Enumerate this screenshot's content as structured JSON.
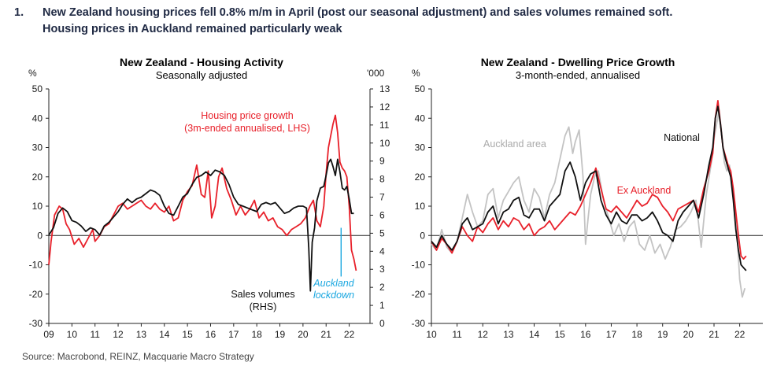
{
  "header": {
    "number": "1.",
    "line1": "New Zealand housing prices fell 0.8% m/m in April (post our seasonal adjustment) and sales volumes remained soft.",
    "line2": "Housing prices in Auckland remained particularly weak"
  },
  "source": "Source: Macrobond, REINZ, Macquarie Macro Strategy",
  "colors": {
    "red": "#e8202a",
    "black": "#111111",
    "grey": "#c3c3c3",
    "blue": "#1aa7e0"
  },
  "chart_data": [
    {
      "type": "line",
      "title": "New Zealand - Housing Activity",
      "subtitle": "Seasonally adjusted",
      "left_unit": "%",
      "right_unit": "'000",
      "ylim_left": [
        -30,
        50
      ],
      "ylim_right": [
        0,
        13
      ],
      "yticks_left": [
        "50",
        "40",
        "30",
        "20",
        "10",
        "0",
        "-10",
        "-20",
        "-30"
      ],
      "yticks_right": [
        "13",
        "12",
        "11",
        "10",
        "9",
        "8",
        "7",
        "6",
        "5",
        "4",
        "3",
        "2",
        "1",
        "0"
      ],
      "xlim": [
        2009,
        2022.9
      ],
      "xticks": [
        "09",
        "10",
        "11",
        "12",
        "13",
        "14",
        "15",
        "16",
        "17",
        "18",
        "19",
        "20",
        "21",
        "22"
      ],
      "annotations": {
        "price_label_1": "Housing price growth",
        "price_label_2": "(3m-ended annualised, LHS)",
        "sales_label_1": "Sales volumes",
        "sales_label_2": "(RHS)",
        "lockdown_1": "Auckland",
        "lockdown_2": "lockdown"
      },
      "series": [
        {
          "axis": "left",
          "color": "red",
          "x": [
            2009.0,
            2009.1,
            2009.25,
            2009.45,
            2009.6,
            2009.75,
            2009.9,
            2010.1,
            2010.3,
            2010.5,
            2010.7,
            2010.9,
            2011.0,
            2011.2,
            2011.4,
            2011.6,
            2011.8,
            2012.0,
            2012.2,
            2012.4,
            2012.6,
            2012.8,
            2013.0,
            2013.2,
            2013.4,
            2013.6,
            2013.8,
            2014.0,
            2014.2,
            2014.4,
            2014.6,
            2014.8,
            2015.0,
            2015.2,
            2015.4,
            2015.6,
            2015.75,
            2015.9,
            2016.05,
            2016.2,
            2016.35,
            2016.5,
            2016.7,
            2016.9,
            2017.1,
            2017.3,
            2017.5,
            2017.7,
            2017.9,
            2018.1,
            2018.3,
            2018.5,
            2018.7,
            2018.9,
            2019.1,
            2019.3,
            2019.5,
            2019.7,
            2019.9,
            2020.1,
            2020.3,
            2020.45,
            2020.6,
            2020.75,
            2020.9,
            2021.0,
            2021.1,
            2021.2,
            2021.3,
            2021.4,
            2021.5,
            2021.6,
            2021.7,
            2021.8,
            2021.9,
            2022.0,
            2022.1,
            2022.2,
            2022.3
          ],
          "y": [
            -10,
            -2,
            7,
            10,
            9,
            4,
            2,
            -3,
            -1,
            -4,
            -1,
            2,
            -2,
            0,
            3,
            4,
            7,
            10,
            11,
            9,
            10,
            11,
            12,
            10,
            9,
            11,
            9,
            8,
            10,
            5,
            6,
            12,
            15,
            17,
            24,
            14,
            13,
            22,
            6,
            10,
            20,
            23,
            16,
            12,
            7,
            10,
            7,
            9,
            12,
            6,
            8,
            5,
            6,
            3,
            2,
            0,
            2,
            3,
            4,
            6,
            10,
            12,
            5,
            3,
            10,
            21,
            30,
            34,
            38,
            41,
            35,
            25,
            23,
            22,
            20,
            10,
            -5,
            -8,
            -12
          ]
        },
        {
          "axis": "right",
          "color": "black",
          "x": [
            2009.0,
            2009.2,
            2009.4,
            2009.6,
            2009.8,
            2010.0,
            2010.2,
            2010.4,
            2010.6,
            2010.8,
            2011.0,
            2011.2,
            2011.4,
            2011.6,
            2011.8,
            2012.0,
            2012.2,
            2012.4,
            2012.6,
            2012.8,
            2013.0,
            2013.2,
            2013.4,
            2013.6,
            2013.8,
            2014.0,
            2014.2,
            2014.4,
            2014.6,
            2014.8,
            2015.0,
            2015.2,
            2015.4,
            2015.6,
            2015.8,
            2016.0,
            2016.2,
            2016.4,
            2016.6,
            2016.8,
            2017.0,
            2017.2,
            2017.4,
            2017.6,
            2017.8,
            2018.0,
            2018.2,
            2018.4,
            2018.6,
            2018.8,
            2019.0,
            2019.2,
            2019.4,
            2019.6,
            2019.8,
            2020.0,
            2020.15,
            2020.25,
            2020.32,
            2020.4,
            2020.5,
            2020.6,
            2020.75,
            2020.9,
            2021.0,
            2021.1,
            2021.2,
            2021.3,
            2021.4,
            2021.5,
            2021.6,
            2021.7,
            2021.8,
            2021.9,
            2022.0,
            2022.1,
            2022.2
          ],
          "y": [
            4.9,
            5.3,
            6.1,
            6.4,
            6.2,
            5.7,
            5.6,
            5.4,
            5.1,
            5.3,
            5.2,
            4.9,
            5.4,
            5.6,
            5.9,
            6.2,
            6.6,
            6.9,
            6.7,
            6.9,
            7.0,
            7.2,
            7.4,
            7.3,
            7.1,
            6.5,
            6.1,
            6.0,
            6.5,
            7.0,
            7.2,
            7.7,
            8.1,
            8.2,
            8.4,
            8.2,
            8.5,
            8.4,
            8.2,
            7.7,
            7.0,
            6.6,
            6.5,
            6.4,
            6.3,
            6.2,
            6.6,
            6.7,
            6.6,
            6.7,
            6.4,
            6.1,
            6.2,
            6.4,
            6.5,
            6.5,
            6.4,
            4.2,
            1.8,
            4.5,
            5.3,
            6.8,
            7.5,
            7.6,
            8.2,
            8.9,
            9.1,
            8.7,
            8.2,
            9.1,
            8.4,
            7.5,
            7.4,
            7.6,
            6.9,
            6.1,
            6.1
          ]
        },
        {
          "axis": "lockdown-marker",
          "color": "blue",
          "x": [
            2021.65,
            2021.65
          ],
          "y": [
            5.3,
            2.6
          ]
        }
      ]
    },
    {
      "type": "line",
      "title": "New Zealand - Dwelling Price Growth",
      "subtitle": "3-month-ended, annualised",
      "left_unit": "%",
      "ylim": [
        -30,
        50
      ],
      "yticks": [
        "50",
        "40",
        "30",
        "20",
        "10",
        "0",
        "-10",
        "-20",
        "-30"
      ],
      "xlim": [
        2010,
        2022.9
      ],
      "xticks": [
        "10",
        "11",
        "12",
        "13",
        "14",
        "15",
        "16",
        "17",
        "18",
        "19",
        "20",
        "21",
        "22"
      ],
      "annotations": {
        "auckland": "Auckland area",
        "national": "National",
        "ex_auckland": "Ex Auckland"
      },
      "series": [
        {
          "name": "Auckland area",
          "color": "grey",
          "x": [
            2010.0,
            2010.2,
            2010.4,
            2010.6,
            2010.8,
            2011.0,
            2011.2,
            2011.4,
            2011.6,
            2011.8,
            2012.0,
            2012.2,
            2012.4,
            2012.6,
            2012.8,
            2013.0,
            2013.2,
            2013.4,
            2013.6,
            2013.8,
            2014.0,
            2014.2,
            2014.4,
            2014.6,
            2014.8,
            2015.0,
            2015.2,
            2015.35,
            2015.5,
            2015.6,
            2015.75,
            2015.9,
            2016.0,
            2016.1,
            2016.2,
            2016.35,
            2016.5,
            2016.7,
            2016.9,
            2017.1,
            2017.3,
            2017.5,
            2017.7,
            2017.9,
            2018.1,
            2018.3,
            2018.5,
            2018.7,
            2018.9,
            2019.1,
            2019.3,
            2019.5,
            2019.7,
            2019.9,
            2020.1,
            2020.3,
            2020.5,
            2020.7,
            2020.9,
            2021.0,
            2021.1,
            2021.2,
            2021.3,
            2021.4,
            2021.5,
            2021.6,
            2021.7,
            2021.8,
            2021.9,
            2022.0,
            2022.1,
            2022.2
          ],
          "y": [
            -3,
            -5,
            2,
            -4,
            -6,
            -2,
            6,
            14,
            8,
            3,
            5,
            14,
            16,
            6,
            12,
            15,
            18,
            20,
            12,
            8,
            16,
            13,
            6,
            14,
            18,
            26,
            34,
            37,
            28,
            32,
            36,
            20,
            -3,
            6,
            14,
            20,
            22,
            12,
            6,
            0,
            4,
            -2,
            3,
            5,
            -3,
            -5,
            0,
            -6,
            -3,
            -8,
            -4,
            2,
            3,
            5,
            8,
            12,
            -4,
            14,
            25,
            33,
            38,
            43,
            35,
            25,
            22,
            24,
            17,
            10,
            0,
            -15,
            -21,
            -18
          ]
        },
        {
          "name": "Ex Auckland",
          "color": "red",
          "x": [
            2010.0,
            2010.2,
            2010.4,
            2010.6,
            2010.8,
            2011.0,
            2011.2,
            2011.4,
            2011.6,
            2011.8,
            2012.0,
            2012.2,
            2012.4,
            2012.6,
            2012.8,
            2013.0,
            2013.2,
            2013.4,
            2013.6,
            2013.8,
            2014.0,
            2014.2,
            2014.4,
            2014.6,
            2014.8,
            2015.0,
            2015.2,
            2015.4,
            2015.6,
            2015.8,
            2016.0,
            2016.2,
            2016.4,
            2016.6,
            2016.8,
            2017.0,
            2017.2,
            2017.4,
            2017.6,
            2017.8,
            2018.0,
            2018.2,
            2018.4,
            2018.6,
            2018.8,
            2019.0,
            2019.2,
            2019.4,
            2019.6,
            2019.8,
            2020.0,
            2020.2,
            2020.4,
            2020.6,
            2020.8,
            2020.95,
            2021.05,
            2021.15,
            2021.25,
            2021.35,
            2021.45,
            2021.55,
            2021.65,
            2021.75,
            2021.85,
            2021.95,
            2022.05,
            2022.15,
            2022.25
          ],
          "y": [
            -2,
            -5,
            -1,
            -3,
            -6,
            -2,
            3,
            0,
            -2,
            3,
            1,
            4,
            6,
            2,
            5,
            3,
            6,
            5,
            2,
            4,
            0,
            2,
            3,
            5,
            2,
            4,
            6,
            8,
            7,
            10,
            14,
            18,
            23,
            16,
            9,
            8,
            10,
            8,
            6,
            9,
            12,
            10,
            11,
            14,
            13,
            10,
            8,
            5,
            9,
            10,
            11,
            12,
            8,
            16,
            22,
            28,
            40,
            46,
            38,
            30,
            27,
            24,
            22,
            16,
            8,
            0,
            -7,
            -8,
            -7
          ]
        },
        {
          "name": "National",
          "color": "black",
          "x": [
            2010.0,
            2010.2,
            2010.4,
            2010.6,
            2010.8,
            2011.0,
            2011.2,
            2011.4,
            2011.6,
            2011.8,
            2012.0,
            2012.2,
            2012.4,
            2012.6,
            2012.8,
            2013.0,
            2013.2,
            2013.4,
            2013.6,
            2013.8,
            2014.0,
            2014.2,
            2014.4,
            2014.6,
            2014.8,
            2015.0,
            2015.2,
            2015.4,
            2015.6,
            2015.8,
            2016.0,
            2016.2,
            2016.4,
            2016.6,
            2016.8,
            2017.0,
            2017.2,
            2017.4,
            2017.6,
            2017.8,
            2018.0,
            2018.2,
            2018.4,
            2018.6,
            2018.8,
            2019.0,
            2019.2,
            2019.4,
            2019.6,
            2019.8,
            2020.0,
            2020.2,
            2020.4,
            2020.6,
            2020.8,
            2020.95,
            2021.05,
            2021.15,
            2021.25,
            2021.35,
            2021.45,
            2021.55,
            2021.65,
            2021.75,
            2021.85,
            2021.95,
            2022.05,
            2022.15,
            2022.25
          ],
          "y": [
            -2,
            -4,
            0,
            -3,
            -5,
            -2,
            4,
            6,
            2,
            3,
            4,
            8,
            10,
            4,
            8,
            9,
            12,
            13,
            7,
            6,
            9,
            9,
            5,
            10,
            12,
            14,
            22,
            25,
            20,
            12,
            18,
            21,
            22,
            12,
            7,
            4,
            8,
            5,
            4,
            7,
            7,
            5,
            6,
            8,
            5,
            1,
            0,
            -2,
            5,
            8,
            10,
            12,
            6,
            14,
            24,
            30,
            40,
            44,
            38,
            30,
            26,
            23,
            20,
            12,
            2,
            -5,
            -10,
            -11,
            -12
          ]
        }
      ]
    }
  ]
}
